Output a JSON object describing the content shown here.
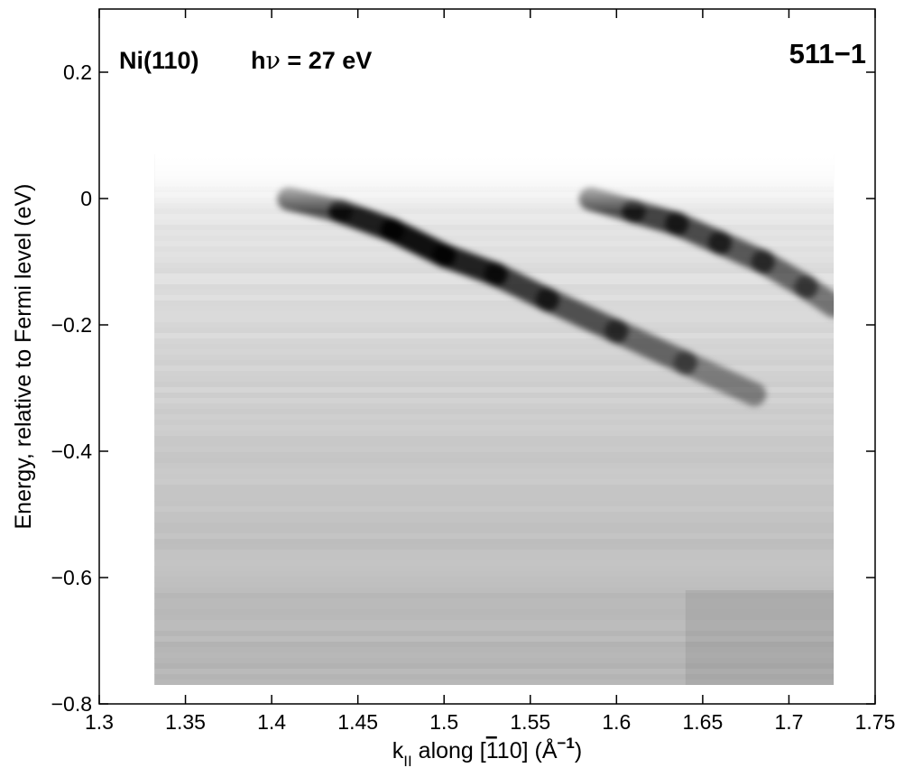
{
  "chart_data": {
    "type": "heatmap",
    "title": "",
    "annotations": {
      "sample": "Ni(110)",
      "photon_energy_prefix": "h",
      "photon_energy_nu": "ν",
      "photon_energy_value": " = 27 eV",
      "run_id": "511−1"
    },
    "xlabel": {
      "k": "k",
      "sub": "II",
      "along": " along [",
      "bar_digit": "1",
      "rest": "10] (Å",
      "exp": "−1",
      "close": ")"
    },
    "ylabel": "Energy, relative to Fermi level (eV)",
    "xlim": [
      1.3,
      1.75
    ],
    "ylim": [
      -0.8,
      0.3
    ],
    "xticks": [
      1.3,
      1.35,
      1.4,
      1.45,
      1.5,
      1.55,
      1.6,
      1.65,
      1.7,
      1.75
    ],
    "xtick_labels": [
      "1.3",
      "1.35",
      "1.4",
      "1.45",
      "1.5",
      "1.55",
      "1.6",
      "1.65",
      "1.7",
      "1.75"
    ],
    "yticks": [
      -0.8,
      -0.6,
      -0.4,
      -0.2,
      0,
      0.2
    ],
    "ytick_labels": [
      "−0.8",
      "−0.6",
      "−0.4",
      "−0.2",
      "0",
      "0.2"
    ],
    "data_extent": {
      "x": [
        1.332,
        1.726
      ],
      "y": [
        -0.77,
        0.07
      ]
    },
    "colormap": "gray (dark = high intensity)",
    "grid": false,
    "bands": [
      {
        "name": "",
        "points": [
          [
            1.41,
            0.0
          ],
          [
            1.44,
            -0.02
          ],
          [
            1.47,
            -0.05
          ],
          [
            1.5,
            -0.09
          ],
          [
            1.53,
            -0.12
          ],
          [
            1.56,
            -0.16
          ],
          [
            1.6,
            -0.21
          ],
          [
            1.64,
            -0.26
          ],
          [
            1.68,
            -0.31
          ]
        ],
        "peak_intensity": [
          0.45,
          0.8,
          1.0,
          0.95,
          0.8,
          0.65,
          0.55,
          0.4,
          0.25
        ]
      },
      {
        "name": "",
        "points": [
          [
            1.585,
            0.0
          ],
          [
            1.61,
            -0.02
          ],
          [
            1.635,
            -0.04
          ],
          [
            1.66,
            -0.07
          ],
          [
            1.685,
            -0.1
          ],
          [
            1.71,
            -0.14
          ],
          [
            1.726,
            -0.17
          ]
        ],
        "peak_intensity": [
          0.55,
          0.7,
          0.7,
          0.6,
          0.55,
          0.45,
          0.35
        ]
      }
    ]
  }
}
